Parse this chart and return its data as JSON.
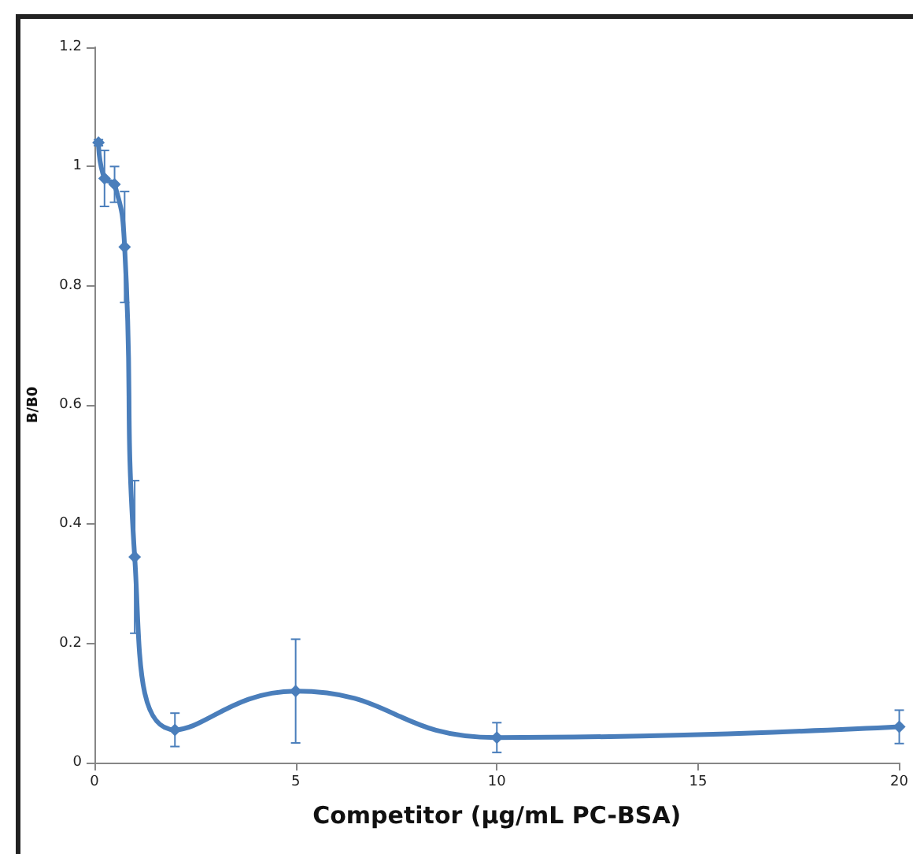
{
  "chart_data": {
    "type": "line",
    "xlabel": "Competitor (µg/mL PC-BSA)",
    "ylabel": "B/B0",
    "x": [
      0.1,
      0.25,
      0.5,
      0.75,
      1,
      2,
      5,
      10,
      20
    ],
    "series": [
      {
        "color": "#4a7ebb",
        "values": [
          1.04,
          0.98,
          0.97,
          0.865,
          0.345,
          0.055,
          0.12,
          0.042,
          0.06
        ],
        "errors": [
          0.005,
          0.047,
          0.03,
          0.093,
          0.128,
          0.028,
          0.087,
          0.025,
          0.028
        ]
      }
    ],
    "xlim": [
      0,
      20
    ],
    "xticks": [
      0,
      5,
      10,
      15,
      20
    ],
    "ylim": [
      0,
      1.2
    ],
    "yticks": [
      0,
      0.2,
      0.4,
      0.6,
      0.8,
      1,
      1.2
    ],
    "grid": false,
    "marker": "diamond",
    "line_style": "solid"
  }
}
